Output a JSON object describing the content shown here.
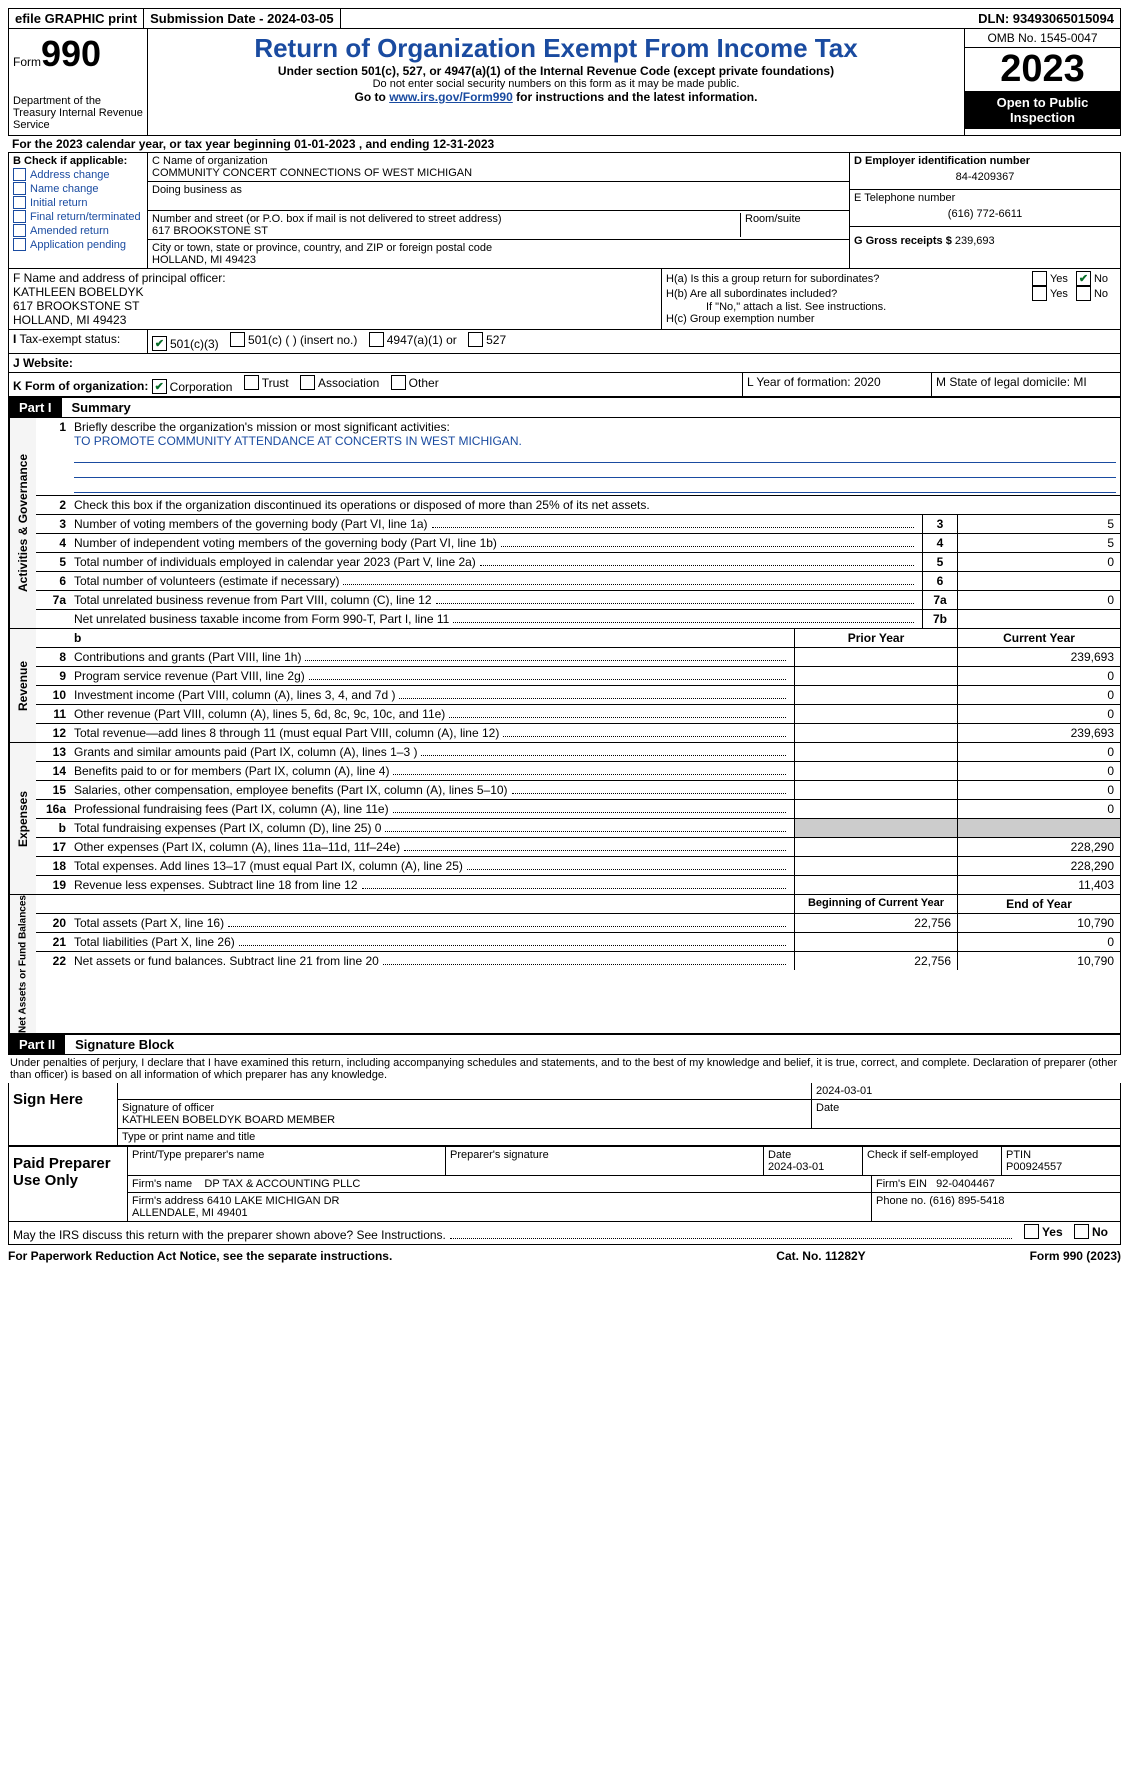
{
  "top": {
    "efile": "efile GRAPHIC print",
    "submission": "Submission Date - 2024-03-05",
    "dln": "DLN: 93493065015094"
  },
  "header": {
    "form": "Form",
    "formnum": "990",
    "dept": "Department of the Treasury Internal Revenue Service",
    "title": "Return of Organization Exempt From Income Tax",
    "sub1": "Under section 501(c), 527, or 4947(a)(1) of the Internal Revenue Code (except private foundations)",
    "sub2": "Do not enter social security numbers on this form as it may be made public.",
    "sub3_pre": "Go to ",
    "sub3_link": "www.irs.gov/Form990",
    "sub3_post": " for instructions and the latest information.",
    "omb": "OMB No. 1545-0047",
    "year": "2023",
    "open": "Open to Public Inspection"
  },
  "lineA": "For the 2023 calendar year, or tax year beginning 01-01-2023   , and ending 12-31-2023",
  "boxB": {
    "label": "B Check if applicable:",
    "opts": [
      "Address change",
      "Name change",
      "Initial return",
      "Final return/terminated",
      "Amended return",
      "Application pending"
    ]
  },
  "boxC": {
    "name_lbl": "C Name of organization",
    "name": "COMMUNITY CONCERT CONNECTIONS OF WEST MICHIGAN",
    "dba_lbl": "Doing business as",
    "addr_lbl": "Number and street (or P.O. box if mail is not delivered to street address)",
    "addr": "617 BROOKSTONE ST",
    "room_lbl": "Room/suite",
    "city_lbl": "City or town, state or province, country, and ZIP or foreign postal code",
    "city": "HOLLAND, MI  49423"
  },
  "boxD": {
    "lbl": "D Employer identification number",
    "val": "84-4209367"
  },
  "boxE": {
    "lbl": "E Telephone number",
    "val": "(616) 772-6611"
  },
  "boxG": {
    "lbl": "G Gross receipts $",
    "val": "239,693"
  },
  "boxF": {
    "lbl": "F  Name and address of principal officer:",
    "name": "KATHLEEN BOBELDYK",
    "addr1": "617 BROOKSTONE ST",
    "addr2": "HOLLAND, MI  49423"
  },
  "boxH": {
    "a": "H(a)  Is this a group return for subordinates?",
    "b": "H(b)  Are all subordinates included?",
    "b_note": "If \"No,\" attach a list. See instructions.",
    "c": "H(c)  Group exemption number"
  },
  "boxI": {
    "lbl": "Tax-exempt status:",
    "o1": "501(c)(3)",
    "o2": "501(c) (   ) (insert no.)",
    "o3": "4947(a)(1) or",
    "o4": "527"
  },
  "boxJ": "Website:",
  "boxK": {
    "lbl": "K Form of organization:",
    "o1": "Corporation",
    "o2": "Trust",
    "o3": "Association",
    "o4": "Other"
  },
  "boxL": "L Year of formation: 2020",
  "boxM": "M State of legal domicile: MI",
  "part1": {
    "lbl": "Part I",
    "title": "Summary"
  },
  "s1": {
    "vtab": "Activities & Governance",
    "q1": "Briefly describe the organization's mission or most significant activities:",
    "q1v": "TO PROMOTE COMMUNITY ATTENDANCE AT CONCERTS IN WEST MICHIGAN.",
    "q2": "Check this box        if the organization discontinued its operations or disposed of more than 25% of its net assets.",
    "rows": [
      {
        "n": "3",
        "d": "Number of voting members of the governing body (Part VI, line 1a)",
        "b": "3",
        "v": "5"
      },
      {
        "n": "4",
        "d": "Number of independent voting members of the governing body (Part VI, line 1b)",
        "b": "4",
        "v": "5"
      },
      {
        "n": "5",
        "d": "Total number of individuals employed in calendar year 2023 (Part V, line 2a)",
        "b": "5",
        "v": "0"
      },
      {
        "n": "6",
        "d": "Total number of volunteers (estimate if necessary)",
        "b": "6",
        "v": ""
      },
      {
        "n": "7a",
        "d": "Total unrelated business revenue from Part VIII, column (C), line 12",
        "b": "7a",
        "v": "0"
      },
      {
        "n": "",
        "d": "Net unrelated business taxable income from Form 990-T, Part I, line 11",
        "b": "7b",
        "v": ""
      }
    ]
  },
  "s2": {
    "vtab": "Revenue",
    "hdr_prior": "Prior Year",
    "hdr_curr": "Current Year",
    "rows": [
      {
        "n": "8",
        "d": "Contributions and grants (Part VIII, line 1h)",
        "p": "",
        "c": "239,693"
      },
      {
        "n": "9",
        "d": "Program service revenue (Part VIII, line 2g)",
        "p": "",
        "c": "0"
      },
      {
        "n": "10",
        "d": "Investment income (Part VIII, column (A), lines 3, 4, and 7d )",
        "p": "",
        "c": "0"
      },
      {
        "n": "11",
        "d": "Other revenue (Part VIII, column (A), lines 5, 6d, 8c, 9c, 10c, and 11e)",
        "p": "",
        "c": "0"
      },
      {
        "n": "12",
        "d": "Total revenue—add lines 8 through 11 (must equal Part VIII, column (A), line 12)",
        "p": "",
        "c": "239,693"
      }
    ]
  },
  "s3": {
    "vtab": "Expenses",
    "rows": [
      {
        "n": "13",
        "d": "Grants and similar amounts paid (Part IX, column (A), lines 1–3 )",
        "p": "",
        "c": "0"
      },
      {
        "n": "14",
        "d": "Benefits paid to or for members (Part IX, column (A), line 4)",
        "p": "",
        "c": "0"
      },
      {
        "n": "15",
        "d": "Salaries, other compensation, employee benefits (Part IX, column (A), lines 5–10)",
        "p": "",
        "c": "0"
      },
      {
        "n": "16a",
        "d": "Professional fundraising fees (Part IX, column (A), line 11e)",
        "p": "",
        "c": "0"
      },
      {
        "n": "b",
        "d": "Total fundraising expenses (Part IX, column (D), line 25) 0",
        "p": "shade",
        "c": "shade"
      },
      {
        "n": "17",
        "d": "Other expenses (Part IX, column (A), lines 11a–11d, 11f–24e)",
        "p": "",
        "c": "228,290"
      },
      {
        "n": "18",
        "d": "Total expenses. Add lines 13–17 (must equal Part IX, column (A), line 25)",
        "p": "",
        "c": "228,290"
      },
      {
        "n": "19",
        "d": "Revenue less expenses. Subtract line 18 from line 12",
        "p": "",
        "c": "11,403"
      }
    ]
  },
  "s4": {
    "vtab": "Net Assets or Fund Balances",
    "hdr_beg": "Beginning of Current Year",
    "hdr_end": "End of Year",
    "rows": [
      {
        "n": "20",
        "d": "Total assets (Part X, line 16)",
        "p": "22,756",
        "c": "10,790"
      },
      {
        "n": "21",
        "d": "Total liabilities (Part X, line 26)",
        "p": "",
        "c": "0"
      },
      {
        "n": "22",
        "d": "Net assets or fund balances. Subtract line 21 from line 20",
        "p": "22,756",
        "c": "10,790"
      }
    ]
  },
  "part2": {
    "lbl": "Part II",
    "title": "Signature Block"
  },
  "penalty": "Under penalties of perjury, I declare that I have examined this return, including accompanying schedules and statements, and to the best of my knowledge and belief, it is true, correct, and complete. Declaration of preparer (other than officer) is based on all information of which preparer has any knowledge.",
  "sign": {
    "here": "Sign Here",
    "date": "2024-03-01",
    "sig_lbl": "Signature of officer",
    "officer": "KATHLEEN BOBELDYK BOARD MEMBER",
    "name_lbl": "Type or print name and title",
    "date_lbl": "Date"
  },
  "paid": {
    "lbl": "Paid Preparer Use Only",
    "name_lbl": "Print/Type preparer's name",
    "sig_lbl": "Preparer's signature",
    "date_lbl": "Date",
    "date": "2024-03-01",
    "check_lbl": "Check       if self-employed",
    "ptin_lbl": "PTIN",
    "ptin": "P00924557",
    "firm_lbl": "Firm's name",
    "firm": "DP TAX & ACCOUNTING PLLC",
    "ein_lbl": "Firm's EIN",
    "ein": "92-0404467",
    "addr_lbl": "Firm's address",
    "addr": "6410 LAKE MICHIGAN DR\nALLENDALE, MI  49401",
    "phone_lbl": "Phone no.",
    "phone": "(616) 895-5418"
  },
  "discuss": "May the IRS discuss this return with the preparer shown above? See Instructions.",
  "footer": {
    "left": "For Paperwork Reduction Act Notice, see the separate instructions.",
    "mid": "Cat. No. 11282Y",
    "right_pre": "Form ",
    "right_b": "990",
    "right_post": " (2023)"
  },
  "yes": "Yes",
  "no": "No"
}
